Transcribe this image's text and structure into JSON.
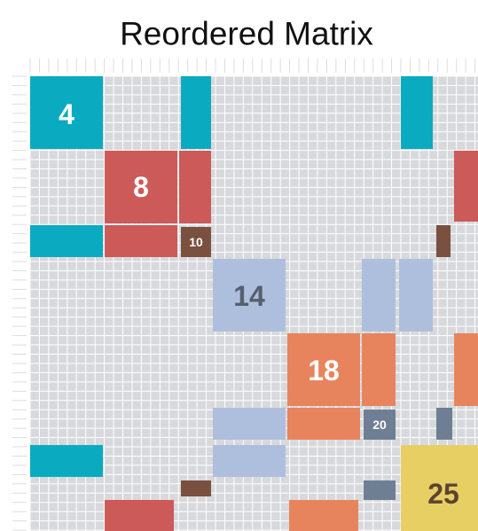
{
  "title": "Reordered Matrix",
  "labels": [
    4,
    8,
    10,
    14,
    18,
    20,
    25
  ]
}
